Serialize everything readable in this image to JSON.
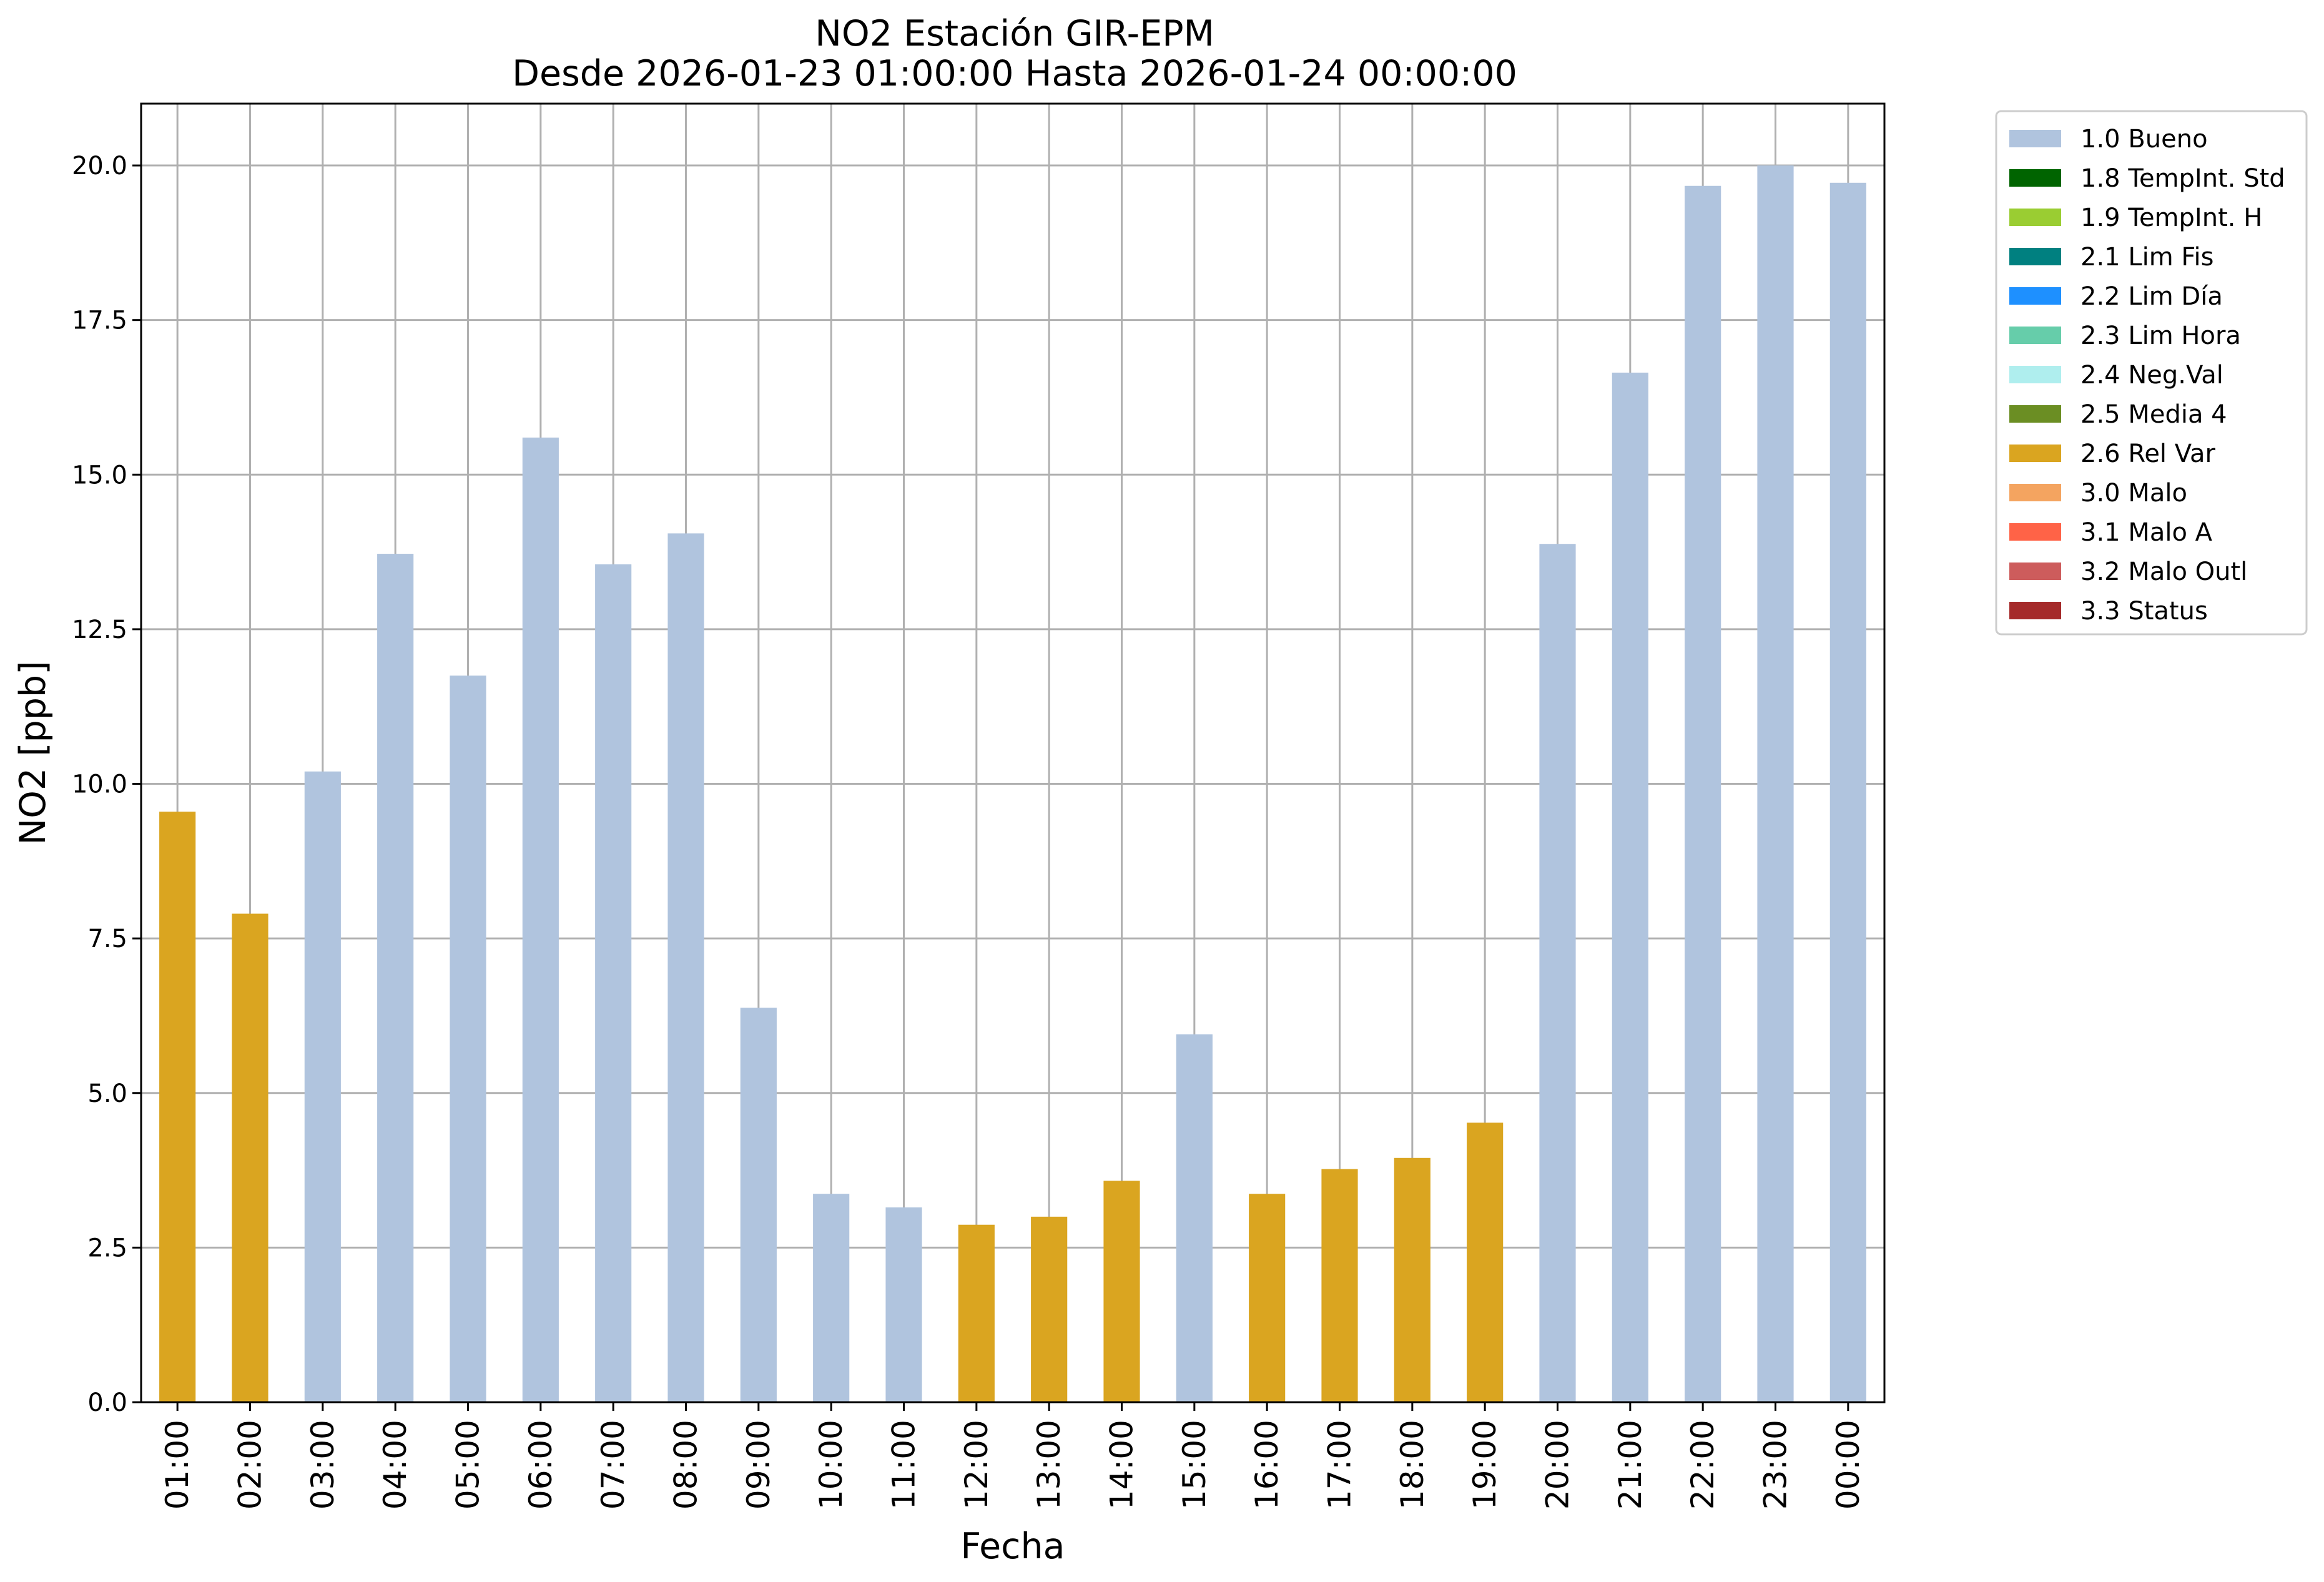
{
  "chart_data": {
    "type": "bar",
    "title": "NO2 Estación GIR-EPM",
    "subtitle": "Desde 2026-01-23 01:00:00 Hasta 2026-01-24 00:00:00",
    "xlabel": "Fecha",
    "ylabel": "NO2 [ppb]",
    "ylim": [
      0,
      21
    ],
    "yticks": [
      "0.0",
      "2.5",
      "5.0",
      "7.5",
      "10.0",
      "12.5",
      "15.0",
      "17.5",
      "20.0"
    ],
    "grid": true,
    "legend_position": "outside-top-right",
    "categories": [
      "01:00",
      "02:00",
      "03:00",
      "04:00",
      "05:00",
      "06:00",
      "07:00",
      "08:00",
      "09:00",
      "10:00",
      "11:00",
      "12:00",
      "13:00",
      "14:00",
      "15:00",
      "16:00",
      "17:00",
      "18:00",
      "19:00",
      "20:00",
      "21:00",
      "22:00",
      "23:00",
      "00:00"
    ],
    "values": [
      9.55,
      7.9,
      10.2,
      13.72,
      11.75,
      15.6,
      13.55,
      14.05,
      6.38,
      3.37,
      3.15,
      2.87,
      3.0,
      3.58,
      5.95,
      3.37,
      3.77,
      3.95,
      4.52,
      13.88,
      16.65,
      19.67,
      20.0,
      19.72
    ],
    "flags": [
      "2.6 Rel Var",
      "2.6 Rel Var",
      "1.0 Bueno",
      "1.0 Bueno",
      "1.0 Bueno",
      "1.0 Bueno",
      "1.0 Bueno",
      "1.0 Bueno",
      "1.0 Bueno",
      "1.0 Bueno",
      "1.0 Bueno",
      "2.6 Rel Var",
      "2.6 Rel Var",
      "2.6 Rel Var",
      "1.0 Bueno",
      "2.6 Rel Var",
      "2.6 Rel Var",
      "2.6 Rel Var",
      "2.6 Rel Var",
      "1.0 Bueno",
      "1.0 Bueno",
      "1.0 Bueno",
      "1.0 Bueno",
      "1.0 Bueno"
    ],
    "legend": [
      {
        "label": "1.0 Bueno",
        "color": "#b0c4de"
      },
      {
        "label": "1.8 TempInt. Std",
        "color": "#006400"
      },
      {
        "label": "1.9 TempInt. H",
        "color": "#9acd32"
      },
      {
        "label": "2.1 Lim Fis",
        "color": "#008080"
      },
      {
        "label": "2.2 Lim Día",
        "color": "#1e90ff"
      },
      {
        "label": "2.3 Lim Hora",
        "color": "#66cdaa"
      },
      {
        "label": "2.4 Neg.Val",
        "color": "#afeeee"
      },
      {
        "label": "2.5 Media 4",
        "color": "#6b8e23"
      },
      {
        "label": "2.6 Rel Var",
        "color": "#daa520"
      },
      {
        "label": "3.0 Malo",
        "color": "#f4a460"
      },
      {
        "label": "3.1 Malo A",
        "color": "#ff6347"
      },
      {
        "label": "3.2 Malo Outl",
        "color": "#cd5c5c"
      },
      {
        "label": "3.3 Status",
        "color": "#a52a2a"
      }
    ]
  }
}
